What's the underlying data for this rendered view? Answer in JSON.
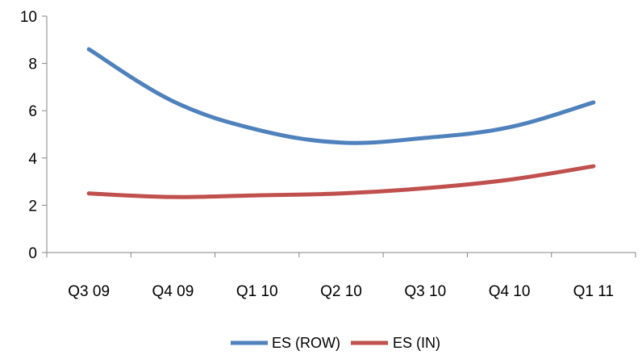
{
  "chart_data": {
    "type": "line",
    "categories": [
      "Q3 09",
      "Q4 09",
      "Q1 10",
      "Q2 10",
      "Q3 10",
      "Q4 10",
      "Q1 11"
    ],
    "series": [
      {
        "name": "ES (ROW)",
        "color": "#4F81BD",
        "values": [
          8.6,
          6.4,
          5.2,
          4.65,
          4.85,
          5.3,
          6.35
        ]
      },
      {
        "name": "ES (IN)",
        "color": "#C0504D",
        "values": [
          2.5,
          2.35,
          2.42,
          2.5,
          2.72,
          3.08,
          3.65
        ]
      }
    ],
    "yticks": [
      0,
      2,
      4,
      6,
      8,
      10
    ],
    "ylim": [
      0,
      10
    ],
    "grid": false,
    "legend": "bottom",
    "title": "",
    "xlabel": "",
    "ylabel": ""
  }
}
